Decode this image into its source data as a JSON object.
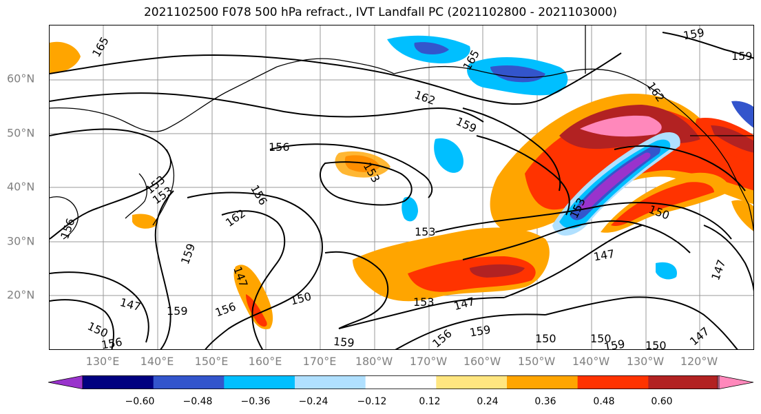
{
  "title": "2021102500 F078 500 hPa refract., IVT Landfall PC (2021102800 - 2021103000)",
  "lat_labels": [
    "60°N",
    "50°N",
    "40°N",
    "30°N",
    "20°N"
  ],
  "lon_labels": [
    "130°E",
    "140°E",
    "150°E",
    "160°E",
    "170°E",
    "180°W",
    "170°W",
    "160°W",
    "150°W",
    "140°W",
    "130°W",
    "120°W"
  ],
  "contour_labels": [
    "165",
    "162",
    "159",
    "156",
    "153",
    "150",
    "147",
    "165",
    "162",
    "159",
    "156",
    "153",
    "150",
    "147",
    "159",
    "156",
    "150",
    "147",
    "159",
    "153",
    "156",
    "150",
    "153",
    "147",
    "159",
    "156",
    "156",
    "159",
    "150",
    "159",
    "147",
    "147",
    "153",
    "150",
    "162",
    "159",
    "153",
    "156",
    "156"
  ],
  "colorbar": {
    "ticks": [
      "−0.60",
      "−0.48",
      "−0.36",
      "−0.24",
      "−0.12",
      "0.12",
      "0.24",
      "0.36",
      "0.48",
      "0.60"
    ],
    "colors": [
      "#9933cc",
      "#000080",
      "#3355cc",
      "#00bfff",
      "#b0e0ff",
      "#ffffff",
      "#ffe680",
      "#ffa500",
      "#ff3300",
      "#b22222",
      "#ff88bb"
    ]
  }
}
